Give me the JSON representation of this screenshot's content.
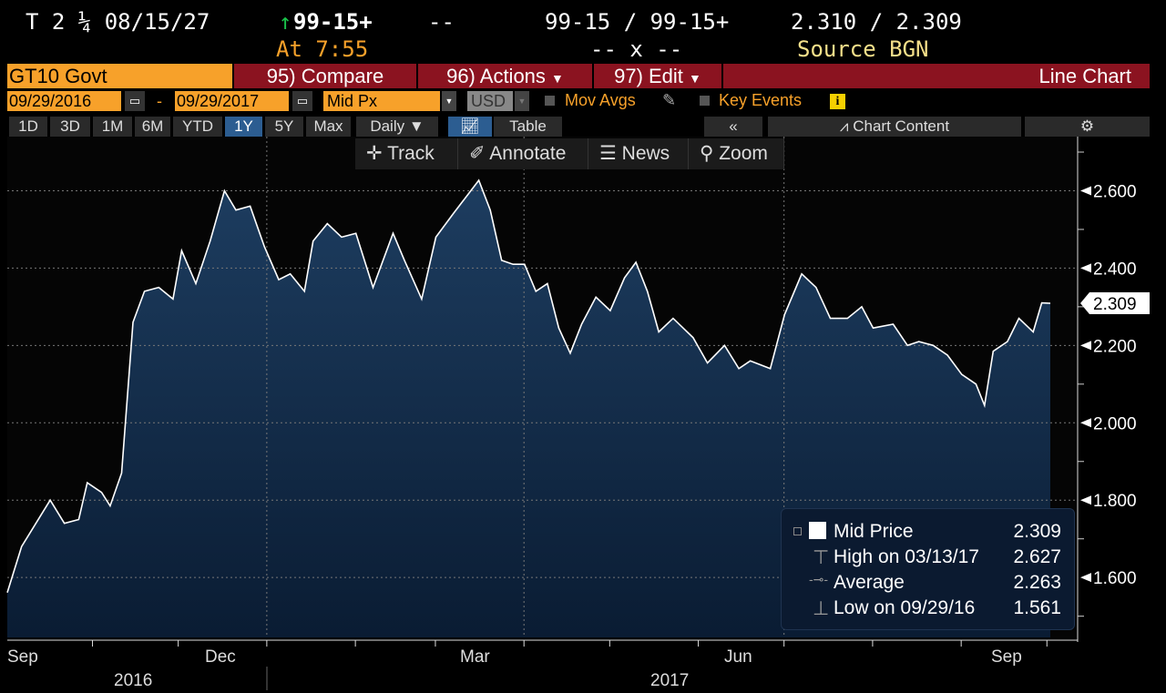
{
  "header": {
    "security": "T 2 ¼ 08/15/27",
    "last_price": "99-15+",
    "change_dash": "--",
    "time": "At 7:55",
    "bid_ask": "99-15 / 99-15+",
    "size": "-- x --",
    "yield": "2.310 / 2.309",
    "source": "Source BGN"
  },
  "menu": {
    "ticker": "GT10 Govt",
    "compare": "95) Compare",
    "actions": "96) Actions",
    "edit": "97) Edit",
    "chart_type": "Line Chart"
  },
  "controls": {
    "start_date": "09/29/2016",
    "dash": "-",
    "end_date": "09/29/2017",
    "field": "Mid Px",
    "currency": "USD",
    "mov_avgs": "Mov Avgs",
    "key_events": "Key Events"
  },
  "periods": [
    {
      "label": "1D"
    },
    {
      "label": "3D"
    },
    {
      "label": "1M"
    },
    {
      "label": "6M"
    },
    {
      "label": "YTD"
    },
    {
      "label": "1Y",
      "active": true
    },
    {
      "label": "5Y"
    },
    {
      "label": "Max"
    }
  ],
  "frequency": "Daily",
  "view": {
    "table": "Table",
    "collapse": "«",
    "chart_content": "Chart Content"
  },
  "tools": {
    "track": "Track",
    "annotate": "Annotate",
    "news": "News",
    "zoom": "Zoom"
  },
  "legend": {
    "mid_label": "Mid Price",
    "mid_value": "2.309",
    "high_label": "High on 03/13/17",
    "high_value": "2.627",
    "avg_label": "Average",
    "avg_value": "2.263",
    "low_label": "Low on 09/29/16",
    "low_value": "1.561"
  },
  "colors": {
    "line": "#ffffff",
    "fill_top": "#1d3d60",
    "fill_bottom": "#0a1c33",
    "accent_orange": "#f7a12a",
    "accent_red": "#8b1320"
  },
  "chart_data": {
    "type": "area",
    "title": "",
    "xlabel": "",
    "ylabel": "",
    "y_axis_side": "right",
    "ylim": [
      1.445,
      2.74
    ],
    "y_ticks": [
      "1.600",
      "1.800",
      "2.000",
      "2.200",
      "2.400",
      "2.600"
    ],
    "x_ticks": [
      "Sep",
      "Dec",
      "Mar",
      "Jun",
      "Sep"
    ],
    "year_labels": [
      "2016",
      "2017"
    ],
    "grid": true,
    "last_value_label": "2.309",
    "series": [
      {
        "points": [
          [
            "2016-09-29",
            1.561
          ],
          [
            "2016-10-04",
            1.68
          ],
          [
            "2016-10-09",
            1.74
          ],
          [
            "2016-10-14",
            1.8
          ],
          [
            "2016-10-19",
            1.74
          ],
          [
            "2016-10-24",
            1.75
          ],
          [
            "2016-10-27",
            1.845
          ],
          [
            "2016-11-01",
            1.82
          ],
          [
            "2016-11-04",
            1.785
          ],
          [
            "2016-11-08",
            1.87
          ],
          [
            "2016-11-12",
            2.26
          ],
          [
            "2016-11-16",
            2.34
          ],
          [
            "2016-11-21",
            2.35
          ],
          [
            "2016-11-26",
            2.32
          ],
          [
            "2016-11-29",
            2.445
          ],
          [
            "2016-12-04",
            2.36
          ],
          [
            "2016-12-09",
            2.47
          ],
          [
            "2016-12-14",
            2.6
          ],
          [
            "2016-12-18",
            2.55
          ],
          [
            "2016-12-23",
            2.56
          ],
          [
            "2016-12-28",
            2.455
          ],
          [
            "2017-01-02",
            2.37
          ],
          [
            "2017-01-06",
            2.385
          ],
          [
            "2017-01-11",
            2.34
          ],
          [
            "2017-01-14",
            2.47
          ],
          [
            "2017-01-19",
            2.515
          ],
          [
            "2017-01-24",
            2.48
          ],
          [
            "2017-01-29",
            2.49
          ],
          [
            "2017-02-04",
            2.35
          ],
          [
            "2017-02-11",
            2.49
          ],
          [
            "2017-02-15",
            2.42
          ],
          [
            "2017-02-21",
            2.32
          ],
          [
            "2017-02-26",
            2.48
          ],
          [
            "2017-03-04",
            2.54
          ],
          [
            "2017-03-13",
            2.627
          ],
          [
            "2017-03-17",
            2.55
          ],
          [
            "2017-03-21",
            2.42
          ],
          [
            "2017-03-25",
            2.41
          ],
          [
            "2017-03-29",
            2.41
          ],
          [
            "2017-04-02",
            2.34
          ],
          [
            "2017-04-06",
            2.36
          ],
          [
            "2017-04-10",
            2.245
          ],
          [
            "2017-04-14",
            2.18
          ],
          [
            "2017-04-18",
            2.255
          ],
          [
            "2017-04-23",
            2.325
          ],
          [
            "2017-04-28",
            2.29
          ],
          [
            "2017-05-03",
            2.375
          ],
          [
            "2017-05-07",
            2.415
          ],
          [
            "2017-05-11",
            2.34
          ],
          [
            "2017-05-15",
            2.235
          ],
          [
            "2017-05-20",
            2.27
          ],
          [
            "2017-05-27",
            2.22
          ],
          [
            "2017-06-01",
            2.155
          ],
          [
            "2017-06-07",
            2.2
          ],
          [
            "2017-06-12",
            2.14
          ],
          [
            "2017-06-16",
            2.16
          ],
          [
            "2017-06-23",
            2.14
          ],
          [
            "2017-06-28",
            2.28
          ],
          [
            "2017-07-04",
            2.385
          ],
          [
            "2017-07-09",
            2.35
          ],
          [
            "2017-07-14",
            2.27
          ],
          [
            "2017-07-20",
            2.27
          ],
          [
            "2017-07-25",
            2.3
          ],
          [
            "2017-07-29",
            2.245
          ],
          [
            "2017-08-05",
            2.255
          ],
          [
            "2017-08-10",
            2.2
          ],
          [
            "2017-08-14",
            2.21
          ],
          [
            "2017-08-19",
            2.2
          ],
          [
            "2017-08-24",
            2.175
          ],
          [
            "2017-08-29",
            2.125
          ],
          [
            "2017-09-03",
            2.1
          ],
          [
            "2017-09-06",
            2.045
          ],
          [
            "2017-09-09",
            2.185
          ],
          [
            "2017-09-14",
            2.21
          ],
          [
            "2017-09-18",
            2.27
          ],
          [
            "2017-09-23",
            2.235
          ],
          [
            "2017-09-26",
            2.31
          ],
          [
            "2017-09-29",
            2.309
          ]
        ]
      }
    ]
  }
}
